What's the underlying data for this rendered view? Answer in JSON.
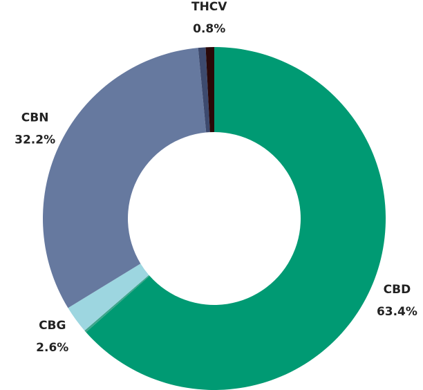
{
  "chart_data": {
    "type": "donut",
    "categories": [
      "CBD",
      null,
      "CBG",
      "CBN",
      null,
      "THCV"
    ],
    "values": [
      63.4,
      0.2,
      2.6,
      32.2,
      0.7,
      0.8
    ],
    "value_labels": [
      "63.4%",
      null,
      "2.6%",
      "32.2%",
      null,
      "0.8%"
    ],
    "colors": [
      "#009a73",
      "#3fa58c",
      "#9dd6e0",
      "#66799f",
      "#3d4a6e",
      "#2a0808"
    ]
  }
}
